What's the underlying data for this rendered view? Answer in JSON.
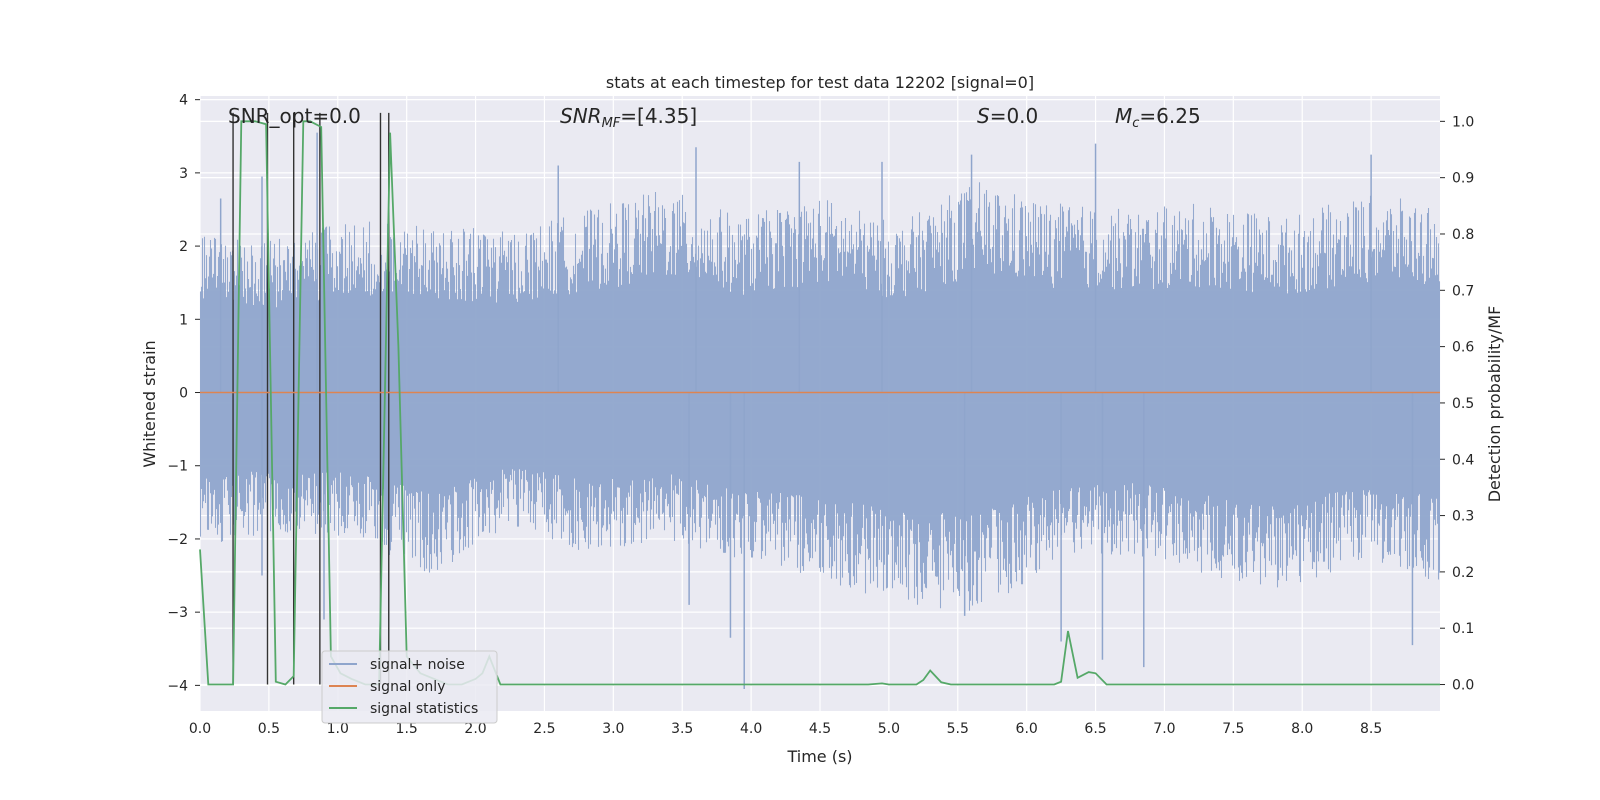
{
  "chart_data": {
    "type": "line",
    "title": "stats at each timestep for test data 12202 [signal=0]",
    "xlabel": "Time (s)",
    "ylabel": "Whitened strain",
    "ylabel_right": "Detection probability/MF",
    "xlim": [
      0,
      9.0
    ],
    "ylim": [
      -4.35,
      4.05
    ],
    "ylim_right": [
      -0.047,
      1.045
    ],
    "x_ticks": [
      "0.0",
      "0.5",
      "1.0",
      "1.5",
      "2.0",
      "2.5",
      "3.0",
      "3.5",
      "4.0",
      "4.5",
      "5.0",
      "5.5",
      "6.0",
      "6.5",
      "7.0",
      "7.5",
      "8.0",
      "8.5"
    ],
    "y_ticks": [
      "4",
      "3",
      "2",
      "1",
      "0",
      "−1",
      "−2",
      "−3",
      "−4"
    ],
    "y_ticks_right": [
      "1.0",
      "0.9",
      "0.8",
      "0.7",
      "0.6",
      "0.5",
      "0.4",
      "0.3",
      "0.2",
      "0.1",
      "0.0"
    ],
    "grid": true,
    "legend_position": "lower-left",
    "annotations": {
      "snr_opt": "SNR_opt=0.0",
      "snr_mf_label": "SNR",
      "snr_mf_sub": "MF",
      "snr_mf_value": "=[4.35]",
      "s_label": "S",
      "s_value": "=0.0",
      "mc_label": "M",
      "mc_sub": "c",
      "mc_value": "=6.25"
    },
    "series": [
      {
        "name": "signal+ noise",
        "color": "#8fa5cc",
        "noise_envelope_low": [
          -2.1,
          -1.9,
          -2.0,
          -2.5,
          -1.8,
          -2.2,
          -2.0,
          -2.3,
          -2.6,
          -2.9,
          -3.0,
          -2.4,
          -2.2,
          -2.5,
          -2.7,
          -2.3,
          -2.6
        ],
        "noise_envelope_high": [
          2.2,
          2.1,
          2.4,
          2.3,
          2.2,
          2.5,
          2.8,
          2.4,
          2.7,
          2.3,
          2.9,
          2.6,
          2.5,
          2.6,
          2.4,
          2.7,
          2.6
        ],
        "spikes_high": [
          [
            0.15,
            2.65
          ],
          [
            0.45,
            2.95
          ],
          [
            0.85,
            3.55
          ],
          [
            2.6,
            3.1
          ],
          [
            3.6,
            3.35
          ],
          [
            4.35,
            3.15
          ],
          [
            4.95,
            3.15
          ],
          [
            5.6,
            3.25
          ],
          [
            6.5,
            3.4
          ],
          [
            8.5,
            3.25
          ]
        ],
        "spikes_low": [
          [
            0.45,
            -2.5
          ],
          [
            0.9,
            -3.1
          ],
          [
            3.55,
            -2.9
          ],
          [
            3.85,
            -3.35
          ],
          [
            3.95,
            -4.05
          ],
          [
            5.55,
            -3.05
          ],
          [
            6.25,
            -3.4
          ],
          [
            6.55,
            -3.65
          ],
          [
            6.85,
            -3.75
          ],
          [
            8.8,
            -3.45
          ]
        ]
      },
      {
        "name": "signal only",
        "color": "#dd8452",
        "x": [
          0,
          9.0
        ],
        "y": [
          0,
          0
        ]
      },
      {
        "name": "signal statistics",
        "color": "#55a868",
        "axis": "right",
        "x": [
          0.0,
          0.06,
          0.24,
          0.3,
          0.4,
          0.48,
          0.55,
          0.62,
          0.68,
          0.75,
          0.8,
          0.88,
          0.95,
          1.02,
          1.1,
          1.2,
          1.3,
          1.38,
          1.44,
          1.5,
          1.6,
          1.7,
          1.8,
          1.9,
          2.0,
          2.05,
          2.1,
          2.18,
          2.5,
          3.0,
          4.0,
          4.5,
          4.85,
          4.95,
          5.0,
          5.2,
          5.25,
          5.3,
          5.38,
          5.45,
          5.6,
          6.0,
          6.2,
          6.25,
          6.3,
          6.37,
          6.45,
          6.5,
          6.58,
          7.0,
          8.0,
          9.0
        ],
        "y": [
          0.24,
          0.0,
          0.0,
          1.0,
          1.0,
          0.995,
          0.005,
          0.0,
          0.015,
          1.0,
          1.0,
          0.99,
          0.05,
          0.02,
          0.01,
          0.0,
          0.0,
          0.98,
          0.6,
          0.05,
          0.02,
          0.01,
          0.0,
          0.0,
          0.01,
          0.02,
          0.05,
          0.0,
          0.0,
          0.0,
          0.0,
          0.0,
          0.0,
          0.002,
          0.0,
          0.0,
          0.008,
          0.025,
          0.004,
          0.0,
          0.0,
          0.0,
          0.0,
          0.005,
          0.095,
          0.012,
          0.022,
          0.02,
          0.0,
          0.0,
          0.0,
          0.0
        ]
      },
      {
        "name": "",
        "color": "#333333",
        "kind": "markers",
        "x": [
          0.24,
          0.49,
          0.68,
          0.87,
          1.31,
          1.37
        ]
      }
    ]
  }
}
